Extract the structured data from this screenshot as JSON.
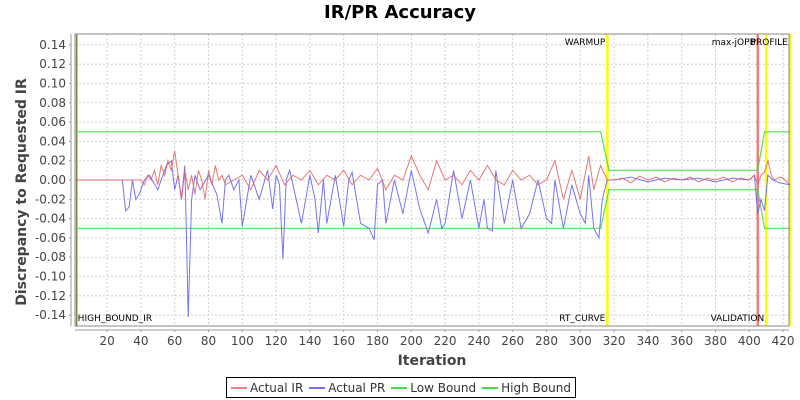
{
  "chart_data": {
    "type": "line",
    "title": "IR/PR Accuracy",
    "xlabel": "Iteration",
    "ylabel": "Discrepancy to Requested IR",
    "xlim": [
      1,
      424
    ],
    "ylim": [
      -0.15,
      0.15
    ],
    "x_ticks": [
      20,
      40,
      60,
      80,
      100,
      120,
      140,
      160,
      180,
      200,
      220,
      240,
      260,
      280,
      300,
      320,
      340,
      360,
      380,
      400,
      420
    ],
    "y_ticks": [
      "0.14",
      "0.12",
      "0.10",
      "0.08",
      "0.06",
      "0.04",
      "0.02",
      "0.00",
      "-0.02",
      "-0.04",
      "-0.06",
      "-0.08",
      "-0.10",
      "-0.12",
      "-0.14"
    ],
    "y_tick_values": [
      0.14,
      0.12,
      0.1,
      0.08,
      0.06,
      0.04,
      0.02,
      0.0,
      -0.02,
      -0.04,
      -0.06,
      -0.08,
      -0.1,
      -0.12,
      -0.14
    ],
    "grid": true,
    "legend_position": "bottom",
    "series": [
      {
        "name": "Actual IR",
        "color": "#e06060",
        "x": [
          1,
          30,
          35,
          38,
          40,
          42,
          44,
          46,
          48,
          50,
          52,
          54,
          56,
          58,
          60,
          62,
          64,
          66,
          68,
          70,
          72,
          74,
          76,
          78,
          80,
          82,
          84,
          86,
          88,
          90,
          95,
          100,
          105,
          110,
          115,
          120,
          125,
          130,
          135,
          140,
          145,
          150,
          155,
          160,
          165,
          170,
          175,
          180,
          185,
          190,
          195,
          200,
          205,
          210,
          215,
          220,
          225,
          230,
          235,
          240,
          245,
          250,
          255,
          260,
          265,
          270,
          275,
          280,
          285,
          290,
          295,
          300,
          305,
          308,
          312,
          316,
          320,
          325,
          330,
          335,
          340,
          345,
          350,
          355,
          360,
          365,
          370,
          375,
          380,
          385,
          390,
          395,
          400,
          403,
          405,
          407,
          409,
          411,
          413,
          415,
          418,
          420,
          424
        ],
        "values": [
          0.0,
          0.0,
          0.0,
          0.0,
          0.0,
          -0.005,
          0.005,
          0.0,
          0.01,
          -0.005,
          0.015,
          0.005,
          0.02,
          0.01,
          0.03,
          0.005,
          -0.02,
          0.01,
          -0.01,
          0.005,
          -0.015,
          0.01,
          0.0,
          -0.02,
          0.01,
          -0.005,
          0.015,
          0.0,
          0.005,
          -0.005,
          0.0,
          0.005,
          -0.01,
          0.01,
          0.0,
          0.015,
          -0.005,
          0.005,
          0.0,
          0.01,
          -0.005,
          0.005,
          0.0,
          0.01,
          -0.005,
          0.005,
          0.0,
          0.012,
          -0.01,
          0.005,
          0.0,
          0.025,
          0.005,
          -0.01,
          0.02,
          0.0,
          0.005,
          -0.005,
          0.01,
          0.0,
          0.015,
          0.0,
          -0.005,
          0.01,
          0.0,
          0.005,
          -0.005,
          0.0,
          0.02,
          -0.02,
          0.01,
          -0.02,
          0.025,
          -0.01,
          0.015,
          0.0,
          0.0,
          0.002,
          -0.003,
          0.004,
          0.0,
          0.003,
          -0.002,
          0.002,
          0.0,
          0.003,
          -0.002,
          0.002,
          0.0,
          0.003,
          -0.002,
          0.002,
          0.0,
          0.005,
          -0.005,
          0.005,
          0.008,
          0.02,
          0.005,
          0.0,
          0.003,
          0.002,
          -0.005
        ]
      },
      {
        "name": "Actual PR",
        "color": "#6666ee",
        "x": [
          1,
          29,
          31,
          33,
          35,
          37,
          39,
          42,
          45,
          50,
          55,
          58,
          60,
          62,
          64,
          66,
          67,
          68,
          70,
          72,
          75,
          80,
          85,
          88,
          90,
          92,
          95,
          98,
          100,
          105,
          110,
          115,
          118,
          120,
          122,
          124,
          126,
          128,
          130,
          135,
          140,
          143,
          145,
          148,
          150,
          155,
          160,
          163,
          165,
          170,
          175,
          178,
          180,
          183,
          185,
          190,
          195,
          200,
          205,
          210,
          215,
          218,
          220,
          225,
          230,
          235,
          240,
          243,
          245,
          248,
          250,
          255,
          260,
          265,
          270,
          275,
          280,
          283,
          285,
          290,
          295,
          300,
          303,
          305,
          308,
          311,
          313,
          316,
          320,
          330,
          340,
          350,
          360,
          370,
          380,
          390,
          400,
          403,
          405,
          407,
          409,
          411,
          414,
          418,
          424
        ],
        "values": [
          0.0,
          0.0,
          -0.032,
          -0.028,
          0.0,
          -0.02,
          -0.015,
          0.0,
          0.005,
          -0.01,
          0.015,
          0.02,
          -0.01,
          0.005,
          -0.02,
          0.015,
          -0.06,
          -0.142,
          -0.02,
          0.005,
          -0.01,
          0.005,
          -0.015,
          -0.045,
          0.0,
          0.005,
          -0.01,
          0.0,
          -0.048,
          0.005,
          -0.02,
          0.01,
          -0.03,
          0.005,
          -0.005,
          -0.082,
          0.0,
          0.01,
          -0.005,
          -0.045,
          0.005,
          -0.02,
          -0.055,
          0.0,
          -0.045,
          0.005,
          -0.048,
          0.0,
          0.008,
          -0.045,
          -0.05,
          -0.062,
          -0.005,
          0.0,
          -0.045,
          0.0,
          -0.035,
          0.01,
          -0.03,
          -0.055,
          -0.02,
          -0.05,
          -0.045,
          0.01,
          -0.04,
          0.0,
          -0.05,
          -0.02,
          -0.05,
          -0.053,
          0.01,
          -0.045,
          0.0,
          -0.05,
          -0.035,
          0.0,
          -0.04,
          -0.045,
          0.0,
          -0.05,
          -0.005,
          -0.035,
          -0.045,
          0.005,
          -0.05,
          -0.06,
          -0.02,
          0.0,
          0.0,
          0.003,
          -0.002,
          0.002,
          0.0,
          0.002,
          -0.002,
          0.002,
          0.0,
          0.005,
          -0.035,
          -0.02,
          -0.032,
          0.005,
          0.0,
          -0.003,
          -0.005
        ]
      },
      {
        "name": "Low Bound",
        "color": "#44dd44",
        "x": [
          1,
          312,
          317,
          405,
          409,
          424
        ],
        "values": [
          -0.05,
          -0.05,
          -0.01,
          -0.01,
          -0.05,
          -0.05
        ]
      },
      {
        "name": "High Bound",
        "color": "#44dd44",
        "x": [
          1,
          312,
          317,
          405,
          409,
          424
        ],
        "values": [
          0.05,
          0.05,
          0.01,
          0.01,
          0.05,
          0.05
        ]
      }
    ],
    "markers": [
      {
        "x": 2,
        "color": "#808040",
        "top_label": "",
        "bottom_label": "HIGH_BOUND_IR"
      },
      {
        "x": 316,
        "color": "#ffff00",
        "top_label": "WARMUP",
        "bottom_label": "RT_CURVE"
      },
      {
        "x": 405,
        "color": "#ee6666",
        "top_label": "max-jOPB",
        "bottom_label": ""
      },
      {
        "x": 410,
        "color": "#ffff00",
        "top_label": "",
        "bottom_label": "VALIDATION"
      },
      {
        "x": 424,
        "color": "#ffff00",
        "top_label": "PROFILE",
        "bottom_label": ""
      }
    ]
  },
  "legend": {
    "items": [
      {
        "label": "Actual IR",
        "color": "#f08080"
      },
      {
        "label": "Actual PR",
        "color": "#7070f0"
      },
      {
        "label": "Low Bound",
        "color": "#44dd44"
      },
      {
        "label": "High Bound",
        "color": "#44dd44"
      }
    ]
  }
}
